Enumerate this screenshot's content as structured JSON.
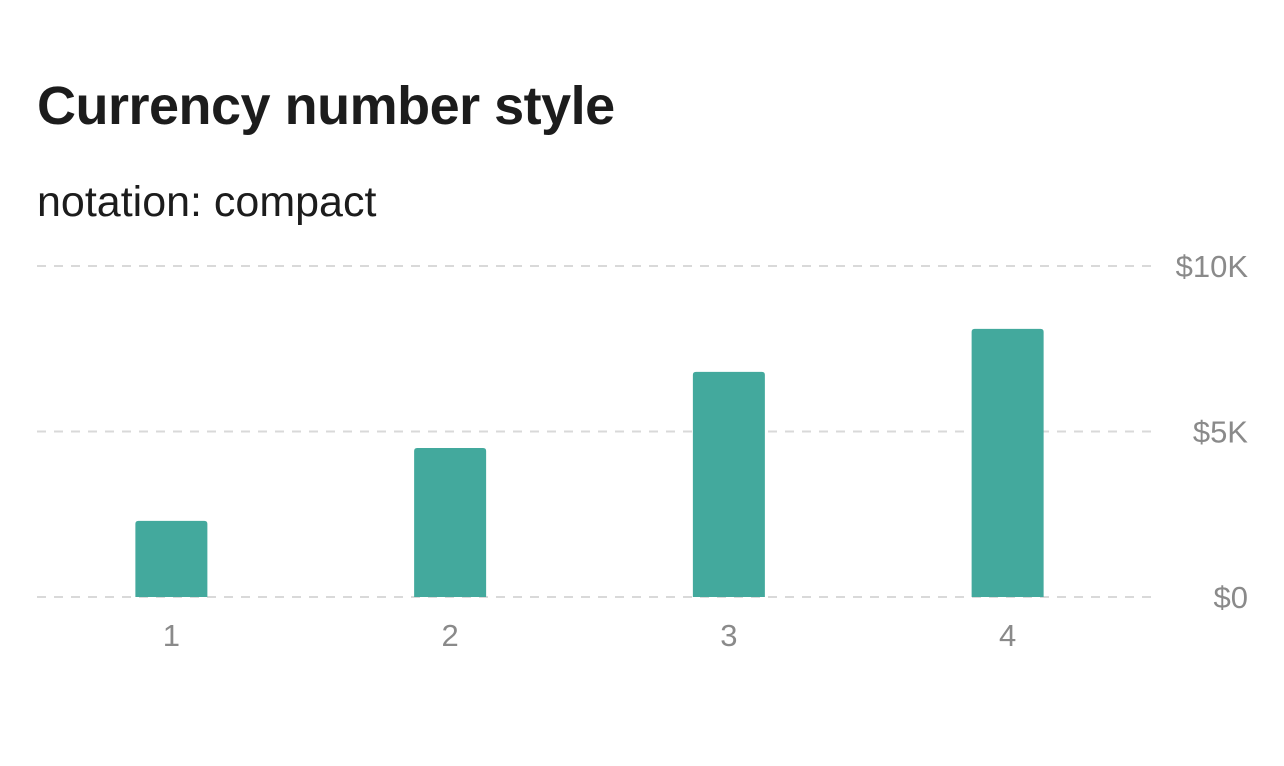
{
  "chart_data": {
    "type": "bar",
    "title": "Currency number style",
    "subtitle": "notation: compact",
    "categories": [
      "1",
      "2",
      "3",
      "4"
    ],
    "values": [
      2300,
      4500,
      6800,
      8100
    ],
    "ylim": [
      0,
      10000
    ],
    "y_ticks": [
      {
        "value": 0,
        "label": "$0"
      },
      {
        "value": 5000,
        "label": "$5K"
      },
      {
        "value": 10000,
        "label": "$10K"
      }
    ],
    "y_axis_side": "right",
    "grid": "horizontal dashed",
    "bar_color": "#43a99d",
    "grid_color": "#d9d9d9",
    "tick_color": "#8a8a8a"
  }
}
